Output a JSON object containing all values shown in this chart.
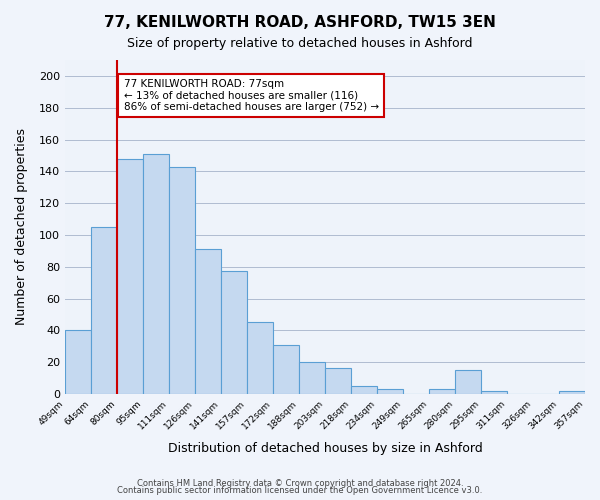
{
  "title": "77, KENILWORTH ROAD, ASHFORD, TW15 3EN",
  "subtitle": "Size of property relative to detached houses in Ashford",
  "xlabel": "Distribution of detached houses by size in Ashford",
  "ylabel": "Number of detached properties",
  "bin_labels": [
    "49sqm",
    "64sqm",
    "80sqm",
    "95sqm",
    "111sqm",
    "126sqm",
    "141sqm",
    "157sqm",
    "172sqm",
    "188sqm",
    "203sqm",
    "218sqm",
    "234sqm",
    "249sqm",
    "265sqm",
    "280sqm",
    "295sqm",
    "311sqm",
    "326sqm",
    "342sqm",
    "357sqm"
  ],
  "bar_heights": [
    40,
    105,
    148,
    151,
    143,
    91,
    77,
    45,
    31,
    20,
    16,
    5,
    3,
    0,
    3,
    15,
    2,
    0,
    0,
    2
  ],
  "bar_color": "#c5d9f0",
  "bar_edge_color": "#5a9fd4",
  "ylim": [
    0,
    210
  ],
  "yticks": [
    0,
    20,
    40,
    60,
    80,
    100,
    120,
    140,
    160,
    180,
    200
  ],
  "property_label": "77 KENILWORTH ROAD: 77sqm",
  "annot_line1": "← 13% of detached houses are smaller (116)",
  "annot_line2": "86% of semi-detached houses are larger (752) →",
  "annotation_box_color": "#ffffff",
  "annotation_box_edge_color": "#cc0000",
  "background_color": "#eef3fa",
  "fig_background_color": "#f0f4fb",
  "red_line_x": 1.5,
  "footer1": "Contains HM Land Registry data © Crown copyright and database right 2024.",
  "footer2": "Contains public sector information licensed under the Open Government Licence v3.0."
}
